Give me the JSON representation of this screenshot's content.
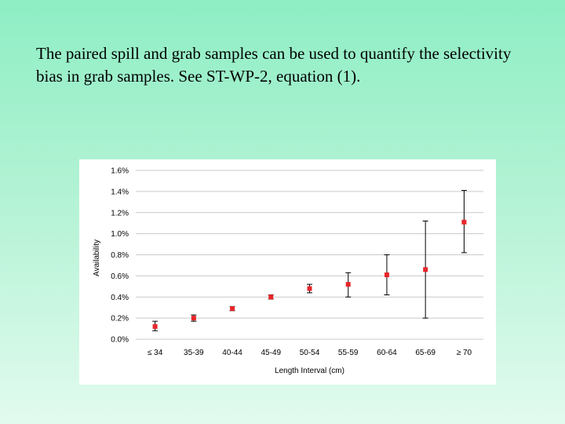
{
  "slide": {
    "text": "The paired spill and grab samples can be used to quantify the selectivity bias in grab samples. See ST-WP-2, equation (1)."
  },
  "chart_data": {
    "type": "scatter",
    "xlabel": "Length Interval (cm)",
    "ylabel": "Availability",
    "categories": [
      "≤ 34",
      "35-39",
      "40-44",
      "45-49",
      "50-54",
      "55-59",
      "60-64",
      "65-69",
      "≥ 70"
    ],
    "ylim": [
      0,
      1.6
    ],
    "yticks": [
      0.0,
      0.2,
      0.4,
      0.6,
      0.8,
      1.0,
      1.2,
      1.4,
      1.6
    ],
    "ytick_labels": [
      "0.0%",
      "0.2%",
      "0.4%",
      "0.6%",
      "0.8%",
      "1.0%",
      "1.2%",
      "1.4%",
      "1.6%"
    ],
    "grid": "horizontal",
    "series": [
      {
        "values": [
          0.12,
          0.2,
          0.29,
          0.4,
          0.48,
          0.52,
          0.61,
          0.66,
          1.11
        ],
        "error_low": [
          0.08,
          0.17,
          0.27,
          0.38,
          0.44,
          0.4,
          0.42,
          0.2,
          0.82
        ],
        "error_high": [
          0.17,
          0.23,
          0.31,
          0.42,
          0.52,
          0.63,
          0.8,
          1.12,
          1.41
        ],
        "color": "#e8262a"
      }
    ],
    "errorbar_color": "#000000",
    "grid_color": "#c9c9c9"
  }
}
